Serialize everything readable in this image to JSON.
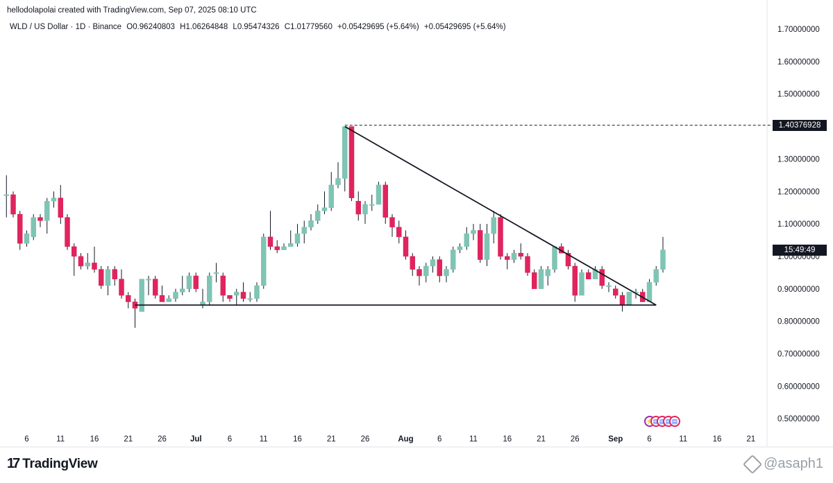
{
  "header": {
    "attribution": "hellodolapolai created with TradingView.com, Sep 07, 2025 08:10 UTC"
  },
  "ohlc": {
    "symbol": "WLD / US Dollar · 1D · Binance",
    "open": "O0.96240803",
    "high": "H1.06264848",
    "low": "L0.95474326",
    "close": "C1.01779560",
    "change": "+0.05429695 (+5.64%)",
    "change2": "+0.05429695 (+5.64%)"
  },
  "price_labels": {
    "resistance": "1.40376928",
    "countdown": "15:49:49"
  },
  "footer": {
    "brand": "TradingView",
    "watermark": "@asaph1"
  },
  "colors": {
    "up": "#7fc4b4",
    "down": "#e0245e",
    "trendline": "#131722",
    "grid": "#f0f3fa"
  },
  "chart_data": {
    "type": "candlestick",
    "title": "WLD / US Dollar · 1D · Binance",
    "y_ticks": [
      "1.70000000",
      "1.60000000",
      "1.50000000",
      "1.40000000",
      "1.30000000",
      "1.20000000",
      "1.10000000",
      "1.00000000",
      "0.90000000",
      "0.80000000",
      "0.70000000",
      "0.60000000",
      "0.50000000"
    ],
    "ylim": [
      0.45,
      1.75
    ],
    "x_ticks": [
      {
        "label": "6",
        "day": 0
      },
      {
        "label": "11",
        "day": 5
      },
      {
        "label": "16",
        "day": 10
      },
      {
        "label": "21",
        "day": 15
      },
      {
        "label": "26",
        "day": 20
      },
      {
        "label": "Jul",
        "day": 25
      },
      {
        "label": "6",
        "day": 30
      },
      {
        "label": "11",
        "day": 35
      },
      {
        "label": "16",
        "day": 40
      },
      {
        "label": "21",
        "day": 45
      },
      {
        "label": "26",
        "day": 50
      },
      {
        "label": "Aug",
        "day": 56
      },
      {
        "label": "6",
        "day": 61
      },
      {
        "label": "11",
        "day": 66
      },
      {
        "label": "16",
        "day": 71
      },
      {
        "label": "21",
        "day": 76
      },
      {
        "label": "26",
        "day": 81
      },
      {
        "label": "Sep",
        "day": 87
      },
      {
        "label": "6",
        "day": 92
      },
      {
        "label": "11",
        "day": 97
      },
      {
        "label": "16",
        "day": 102
      },
      {
        "label": "21",
        "day": 107
      }
    ],
    "first_day": -3,
    "candles": [
      {
        "o": 1.19,
        "h": 1.25,
        "l": 1.12,
        "c": 1.19
      },
      {
        "o": 1.19,
        "h": 1.2,
        "l": 1.12,
        "c": 1.13
      },
      {
        "o": 1.13,
        "h": 1.14,
        "l": 1.02,
        "c": 1.04
      },
      {
        "o": 1.04,
        "h": 1.08,
        "l": 1.03,
        "c": 1.07
      },
      {
        "o": 1.06,
        "h": 1.13,
        "l": 1.05,
        "c": 1.12
      },
      {
        "o": 1.12,
        "h": 1.13,
        "l": 1.09,
        "c": 1.11
      },
      {
        "o": 1.11,
        "h": 1.18,
        "l": 1.07,
        "c": 1.17
      },
      {
        "o": 1.17,
        "h": 1.2,
        "l": 1.15,
        "c": 1.18
      },
      {
        "o": 1.18,
        "h": 1.22,
        "l": 1.1,
        "c": 1.12
      },
      {
        "o": 1.12,
        "h": 1.13,
        "l": 1.02,
        "c": 1.03
      },
      {
        "o": 1.03,
        "h": 1.04,
        "l": 0.94,
        "c": 1.0
      },
      {
        "o": 1.0,
        "h": 1.01,
        "l": 0.96,
        "c": 0.97
      },
      {
        "o": 0.97,
        "h": 1.01,
        "l": 0.96,
        "c": 0.98
      },
      {
        "o": 0.98,
        "h": 1.03,
        "l": 0.95,
        "c": 0.96
      },
      {
        "o": 0.96,
        "h": 0.97,
        "l": 0.9,
        "c": 0.91
      },
      {
        "o": 0.91,
        "h": 0.97,
        "l": 0.88,
        "c": 0.96
      },
      {
        "o": 0.96,
        "h": 0.97,
        "l": 0.91,
        "c": 0.93
      },
      {
        "o": 0.93,
        "h": 0.96,
        "l": 0.87,
        "c": 0.88
      },
      {
        "o": 0.88,
        "h": 0.89,
        "l": 0.84,
        "c": 0.86
      },
      {
        "o": 0.86,
        "h": 0.87,
        "l": 0.78,
        "c": 0.84
      },
      {
        "o": 0.83,
        "h": 0.93,
        "l": 0.83,
        "c": 0.93
      },
      {
        "o": 0.93,
        "h": 0.94,
        "l": 0.88,
        "c": 0.93
      },
      {
        "o": 0.93,
        "h": 0.94,
        "l": 0.87,
        "c": 0.88
      },
      {
        "o": 0.88,
        "h": 0.91,
        "l": 0.86,
        "c": 0.86
      },
      {
        "o": 0.86,
        "h": 0.88,
        "l": 0.86,
        "c": 0.87
      },
      {
        "o": 0.87,
        "h": 0.9,
        "l": 0.86,
        "c": 0.89
      },
      {
        "o": 0.89,
        "h": 0.94,
        "l": 0.88,
        "c": 0.9
      },
      {
        "o": 0.9,
        "h": 0.95,
        "l": 0.89,
        "c": 0.94
      },
      {
        "o": 0.94,
        "h": 0.95,
        "l": 0.89,
        "c": 0.9
      },
      {
        "o": 0.85,
        "h": 0.9,
        "l": 0.84,
        "c": 0.86
      },
      {
        "o": 0.86,
        "h": 0.95,
        "l": 0.85,
        "c": 0.94
      },
      {
        "o": 0.95,
        "h": 0.98,
        "l": 0.92,
        "c": 0.95
      },
      {
        "o": 0.94,
        "h": 0.95,
        "l": 0.86,
        "c": 0.88
      },
      {
        "o": 0.88,
        "h": 0.88,
        "l": 0.86,
        "c": 0.87
      },
      {
        "o": 0.88,
        "h": 0.9,
        "l": 0.85,
        "c": 0.89
      },
      {
        "o": 0.89,
        "h": 0.92,
        "l": 0.86,
        "c": 0.87
      },
      {
        "o": 0.87,
        "h": 0.89,
        "l": 0.86,
        "c": 0.87
      },
      {
        "o": 0.87,
        "h": 0.92,
        "l": 0.86,
        "c": 0.91
      },
      {
        "o": 0.91,
        "h": 1.07,
        "l": 0.9,
        "c": 1.06
      },
      {
        "o": 1.06,
        "h": 1.14,
        "l": 1.02,
        "c": 1.03
      },
      {
        "o": 1.03,
        "h": 1.05,
        "l": 1.01,
        "c": 1.02
      },
      {
        "o": 1.02,
        "h": 1.04,
        "l": 1.02,
        "c": 1.03
      },
      {
        "o": 1.03,
        "h": 1.08,
        "l": 1.03,
        "c": 1.04
      },
      {
        "o": 1.04,
        "h": 1.1,
        "l": 1.03,
        "c": 1.07
      },
      {
        "o": 1.07,
        "h": 1.11,
        "l": 1.04,
        "c": 1.09
      },
      {
        "o": 1.09,
        "h": 1.13,
        "l": 1.08,
        "c": 1.11
      },
      {
        "o": 1.11,
        "h": 1.16,
        "l": 1.1,
        "c": 1.14
      },
      {
        "o": 1.14,
        "h": 1.2,
        "l": 1.13,
        "c": 1.15
      },
      {
        "o": 1.15,
        "h": 1.26,
        "l": 1.14,
        "c": 1.22
      },
      {
        "o": 1.22,
        "h": 1.29,
        "l": 1.21,
        "c": 1.24
      },
      {
        "o": 1.24,
        "h": 1.4,
        "l": 1.2,
        "c": 1.4
      },
      {
        "o": 1.4,
        "h": 1.4,
        "l": 1.17,
        "c": 1.18
      },
      {
        "o": 1.17,
        "h": 1.2,
        "l": 1.11,
        "c": 1.13
      },
      {
        "o": 1.13,
        "h": 1.17,
        "l": 1.1,
        "c": 1.16
      },
      {
        "o": 1.16,
        "h": 1.19,
        "l": 1.14,
        "c": 1.16
      },
      {
        "o": 1.16,
        "h": 1.23,
        "l": 1.16,
        "c": 1.22
      },
      {
        "o": 1.22,
        "h": 1.23,
        "l": 1.1,
        "c": 1.12
      },
      {
        "o": 1.12,
        "h": 1.13,
        "l": 1.06,
        "c": 1.09
      },
      {
        "o": 1.09,
        "h": 1.11,
        "l": 1.04,
        "c": 1.06
      },
      {
        "o": 1.06,
        "h": 1.08,
        "l": 0.99,
        "c": 1.0
      },
      {
        "o": 1.0,
        "h": 1.01,
        "l": 0.94,
        "c": 0.96
      },
      {
        "o": 0.96,
        "h": 0.97,
        "l": 0.91,
        "c": 0.94
      },
      {
        "o": 0.94,
        "h": 0.98,
        "l": 0.92,
        "c": 0.97
      },
      {
        "o": 0.97,
        "h": 1.0,
        "l": 0.95,
        "c": 0.99
      },
      {
        "o": 0.99,
        "h": 1.0,
        "l": 0.92,
        "c": 0.94
      },
      {
        "o": 0.94,
        "h": 0.97,
        "l": 0.92,
        "c": 0.96
      },
      {
        "o": 0.96,
        "h": 1.03,
        "l": 0.95,
        "c": 1.02
      },
      {
        "o": 1.02,
        "h": 1.04,
        "l": 1.01,
        "c": 1.03
      },
      {
        "o": 1.03,
        "h": 1.09,
        "l": 1.02,
        "c": 1.07
      },
      {
        "o": 1.07,
        "h": 1.1,
        "l": 1.05,
        "c": 1.08
      },
      {
        "o": 1.08,
        "h": 1.1,
        "l": 0.98,
        "c": 0.99
      },
      {
        "o": 0.99,
        "h": 1.1,
        "l": 0.97,
        "c": 1.07
      },
      {
        "o": 1.07,
        "h": 1.14,
        "l": 1.04,
        "c": 1.12
      },
      {
        "o": 1.12,
        "h": 1.13,
        "l": 0.99,
        "c": 1.0
      },
      {
        "o": 1.0,
        "h": 1.01,
        "l": 0.96,
        "c": 0.99
      },
      {
        "o": 0.99,
        "h": 1.02,
        "l": 0.98,
        "c": 1.01
      },
      {
        "o": 1.01,
        "h": 1.04,
        "l": 0.99,
        "c": 1.0
      },
      {
        "o": 1.0,
        "h": 1.01,
        "l": 0.94,
        "c": 0.95
      },
      {
        "o": 0.95,
        "h": 0.96,
        "l": 0.9,
        "c": 0.9
      },
      {
        "o": 0.9,
        "h": 0.97,
        "l": 0.9,
        "c": 0.96
      },
      {
        "o": 0.94,
        "h": 0.97,
        "l": 0.91,
        "c": 0.96
      },
      {
        "o": 0.96,
        "h": 1.03,
        "l": 0.95,
        "c": 1.03
      },
      {
        "o": 1.03,
        "h": 1.04,
        "l": 1.01,
        "c": 1.01
      },
      {
        "o": 1.01,
        "h": 1.02,
        "l": 0.96,
        "c": 0.97
      },
      {
        "o": 0.97,
        "h": 0.98,
        "l": 0.86,
        "c": 0.88
      },
      {
        "o": 0.88,
        "h": 0.96,
        "l": 0.88,
        "c": 0.95
      },
      {
        "o": 0.95,
        "h": 0.96,
        "l": 0.93,
        "c": 0.93
      },
      {
        "o": 0.93,
        "h": 0.97,
        "l": 0.93,
        "c": 0.96
      },
      {
        "o": 0.96,
        "h": 0.97,
        "l": 0.9,
        "c": 0.91
      },
      {
        "o": 0.91,
        "h": 0.92,
        "l": 0.89,
        "c": 0.91
      },
      {
        "o": 0.9,
        "h": 0.91,
        "l": 0.87,
        "c": 0.88
      },
      {
        "o": 0.88,
        "h": 0.89,
        "l": 0.83,
        "c": 0.85
      },
      {
        "o": 0.85,
        "h": 0.89,
        "l": 0.85,
        "c": 0.89
      },
      {
        "o": 0.89,
        "h": 0.9,
        "l": 0.87,
        "c": 0.89
      },
      {
        "o": 0.89,
        "h": 0.9,
        "l": 0.86,
        "c": 0.86
      },
      {
        "o": 0.86,
        "h": 0.93,
        "l": 0.86,
        "c": 0.92
      },
      {
        "o": 0.92,
        "h": 0.97,
        "l": 0.91,
        "c": 0.96
      },
      {
        "o": 0.96,
        "h": 1.06,
        "l": 0.95,
        "c": 1.02
      }
    ],
    "resistance_level": 1.40376928,
    "current_price": 1.0177956,
    "trendlines": [
      {
        "name": "descending",
        "from": {
          "day": 47,
          "price": 1.4
        },
        "to": {
          "day": 93,
          "price": 0.85
        }
      },
      {
        "name": "support",
        "from": {
          "day": 16,
          "price": 0.85
        },
        "to": {
          "day": 93,
          "price": 0.85
        }
      }
    ],
    "grid": true
  }
}
